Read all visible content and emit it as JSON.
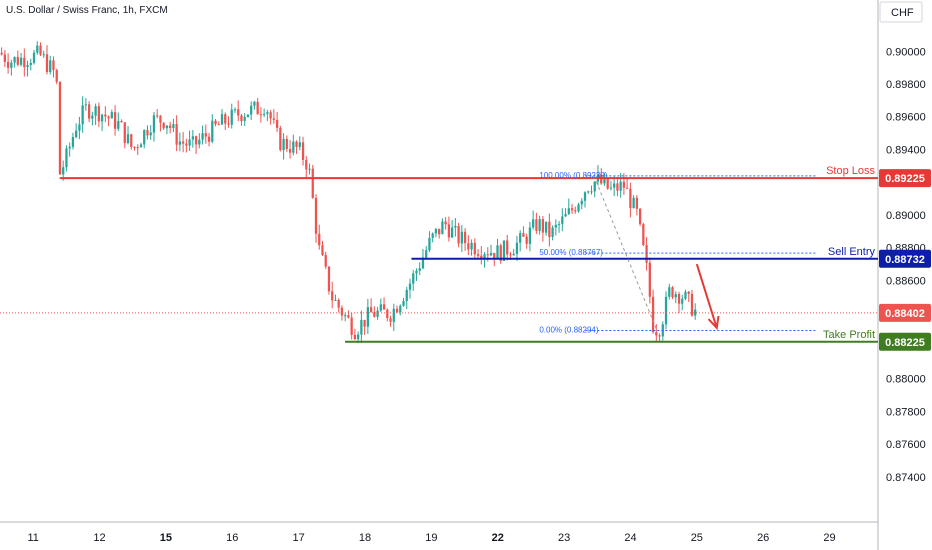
{
  "header": {
    "title": "U.S. Dollar / Swiss Franc, 1h, FXCM",
    "currency": "CHF"
  },
  "colors": {
    "up": "#26a69a",
    "down": "#ef5350",
    "stop": "#e53935",
    "entry": "#0d1ea8",
    "target": "#3f7d20",
    "fib": "#2962ff",
    "last": "#ef5350"
  },
  "chart_data": {
    "type": "candlestick",
    "ylim": [
      0.8724,
      0.9013
    ],
    "y_ticks": [
      "0.90000",
      "0.89800",
      "0.89600",
      "0.89400",
      "0.89200",
      "0.89000",
      "0.88800",
      "0.88600",
      "0.88400",
      "0.88200",
      "0.88000",
      "0.87800",
      "0.87600",
      "0.87400"
    ],
    "x_ticks": [
      {
        "label": "11",
        "pos": 0.5,
        "bold": false
      },
      {
        "label": "12",
        "pos": 1.5,
        "bold": false
      },
      {
        "label": "15",
        "pos": 2.5,
        "bold": true
      },
      {
        "label": "16",
        "pos": 3.5,
        "bold": false
      },
      {
        "label": "17",
        "pos": 4.5,
        "bold": false
      },
      {
        "label": "18",
        "pos": 5.5,
        "bold": false
      },
      {
        "label": "19",
        "pos": 6.5,
        "bold": false
      },
      {
        "label": "22",
        "pos": 7.5,
        "bold": true
      },
      {
        "label": "23",
        "pos": 8.5,
        "bold": false
      },
      {
        "label": "24",
        "pos": 9.5,
        "bold": false
      },
      {
        "label": "25",
        "pos": 10.5,
        "bold": false
      },
      {
        "label": "26",
        "pos": 11.5,
        "bold": false
      },
      {
        "label": "29",
        "pos": 12.5,
        "bold": false
      }
    ],
    "x_range": [
      0.0,
      13.23
    ],
    "anchors": [
      [
        0.0,
        0.8999
      ],
      [
        0.15,
        0.8994
      ],
      [
        0.4,
        0.8996
      ],
      [
        0.6,
        0.8998
      ],
      [
        0.85,
        0.8985
      ],
      [
        0.9,
        0.8925
      ],
      [
        1.0,
        0.8935
      ],
      [
        1.15,
        0.8955
      ],
      [
        1.3,
        0.8965
      ],
      [
        1.5,
        0.8963
      ],
      [
        1.8,
        0.8955
      ],
      [
        2.0,
        0.894
      ],
      [
        2.3,
        0.8958
      ],
      [
        2.5,
        0.8958
      ],
      [
        2.7,
        0.8945
      ],
      [
        2.9,
        0.8942
      ],
      [
        3.3,
        0.8955
      ],
      [
        3.6,
        0.8962
      ],
      [
        3.9,
        0.8965
      ],
      [
        4.0,
        0.8968
      ],
      [
        4.2,
        0.8945
      ],
      [
        4.5,
        0.894
      ],
      [
        4.65,
        0.893
      ],
      [
        4.8,
        0.888
      ],
      [
        5.0,
        0.885
      ],
      [
        5.2,
        0.8838
      ],
      [
        5.35,
        0.883
      ],
      [
        5.6,
        0.884
      ],
      [
        5.9,
        0.884
      ],
      [
        6.2,
        0.886
      ],
      [
        6.5,
        0.8885
      ],
      [
        6.7,
        0.8895
      ],
      [
        6.9,
        0.8886
      ],
      [
        7.2,
        0.888
      ],
      [
        7.5,
        0.8877
      ],
      [
        7.7,
        0.888
      ],
      [
        7.9,
        0.8885
      ],
      [
        8.1,
        0.8895
      ],
      [
        8.3,
        0.8888
      ],
      [
        8.6,
        0.8902
      ],
      [
        8.85,
        0.8918
      ],
      [
        9.0,
        0.8921
      ],
      [
        9.2,
        0.8915
      ],
      [
        9.4,
        0.8918
      ],
      [
        9.6,
        0.89
      ],
      [
        9.75,
        0.8865
      ],
      [
        9.85,
        0.883
      ],
      [
        9.95,
        0.8832
      ],
      [
        10.1,
        0.8855
      ],
      [
        10.3,
        0.885
      ],
      [
        10.5,
        0.884
      ]
    ],
    "candle_count": 215,
    "levels": [
      {
        "name": "Stop Loss",
        "value": 0.89225,
        "label": "0.89225",
        "color_key": "stop",
        "x_start": 0.9
      },
      {
        "name": "Sell Entry",
        "value": 0.88732,
        "label": "0.88732",
        "color_key": "entry",
        "x_start": 6.2
      },
      {
        "name": "Take Profit",
        "value": 0.88225,
        "label": "0.88225",
        "color_key": "target",
        "x_start": 5.2
      }
    ],
    "last_price": {
      "value": 0.88402,
      "label": "0.88402"
    },
    "fib": [
      {
        "label": "100.00% (0.89239)",
        "value": 0.89239
      },
      {
        "label": "50.00% (0.88767)",
        "value": 0.88767
      },
      {
        "label": "0.00% (0.88294)",
        "value": 0.88294
      }
    ],
    "fib_x": [
      8.7,
      12.3
    ],
    "fib_diag": [
      [
        8.95,
        0.89239
      ],
      [
        9.9,
        0.88294
      ]
    ],
    "arrow": {
      "from": [
        10.5,
        0.887
      ],
      "to": [
        10.8,
        0.8831
      ]
    }
  }
}
